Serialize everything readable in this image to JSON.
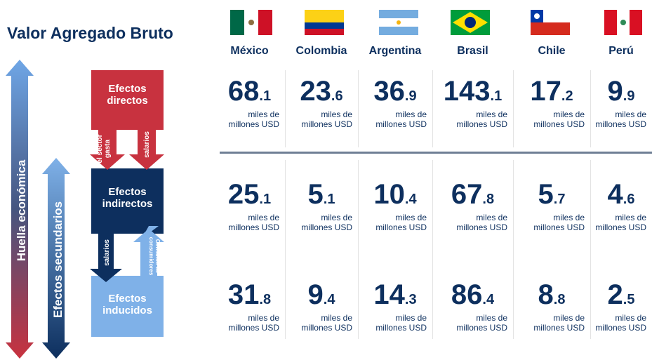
{
  "title": "Valor Agregado Bruto",
  "countries": [
    "México",
    "Colombia",
    "Argentina",
    "Brasil",
    "Chile",
    "Perú"
  ],
  "unit": "miles de millones USD",
  "rows": [
    [
      68.1,
      23.6,
      36.9,
      143.1,
      17.2,
      9.9
    ],
    [
      25.1,
      5.1,
      10.4,
      67.8,
      5.7,
      4.6
    ],
    [
      31.8,
      9.4,
      14.3,
      86.4,
      8.8,
      2.5
    ]
  ],
  "diagram": {
    "footprint": "Huella económica",
    "secondary": "Efectos secundarios",
    "direct": "Efectos directos",
    "indirect": "Efectos indirectos",
    "induced": "Efectos inducidos",
    "spend": "el sector gasta",
    "wages1": "salarios",
    "wages2": "salarios",
    "consumption": "Consumo de consumidores"
  }
}
